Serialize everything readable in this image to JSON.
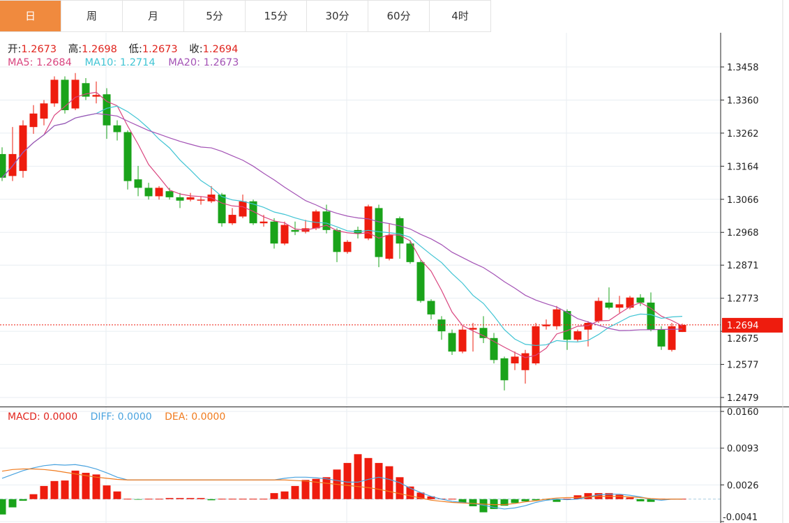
{
  "tabs": [
    {
      "label": "日",
      "active": true
    },
    {
      "label": "周"
    },
    {
      "label": "月"
    },
    {
      "label": "5分"
    },
    {
      "label": "15分"
    },
    {
      "label": "30分"
    },
    {
      "label": "60分"
    },
    {
      "label": "4时"
    }
  ],
  "ohlc_info": {
    "open_label": "开:",
    "open": "1.2673",
    "high_label": "高:",
    "high": "1.2698",
    "low_label": "低:",
    "low": "1.2673",
    "close_label": "收:",
    "close": "1.2694"
  },
  "ma_info": {
    "ma5": "MA5: 1.2684",
    "ma10": "MA10: 1.2714",
    "ma20": "MA20: 1.2673"
  },
  "macd_info": {
    "macd": "MACD: 0.0000",
    "diff": "DIFF: 0.0000",
    "dea": "DEA: 0.0000"
  },
  "colors": {
    "up": "#ee1c0e",
    "down": "#1aa31a",
    "ma5": "#d9457f",
    "ma10": "#40c4d4",
    "ma20": "#a352b5",
    "diff": "#4aa3df",
    "dea": "#f07b1e",
    "accent": "#f08a3e"
  },
  "chart_data": [
    {
      "type": "candlestick",
      "price_ticks": [
        "1.3458",
        "1.3360",
        "1.3262",
        "1.3164",
        "1.3066",
        "1.2968",
        "1.2871",
        "1.2773",
        "1.2675",
        "1.2577",
        "1.2479"
      ],
      "ylim": [
        1.2479,
        1.3458
      ],
      "current_price": "1.2694",
      "grid": true,
      "ohlc": [
        [
          1.32,
          1.322,
          1.312,
          1.313
        ],
        [
          1.3135,
          1.328,
          1.312,
          1.32
        ],
        [
          1.315,
          1.33,
          1.313,
          1.3285
        ],
        [
          1.328,
          1.3345,
          1.326,
          1.332
        ],
        [
          1.3305,
          1.336,
          1.3285,
          1.335
        ],
        [
          1.335,
          1.343,
          1.334,
          1.342
        ],
        [
          1.342,
          1.343,
          1.332,
          1.333
        ],
        [
          1.3335,
          1.344,
          1.333,
          1.342
        ],
        [
          1.341,
          1.3425,
          1.336,
          1.337
        ],
        [
          1.337,
          1.3415,
          1.335,
          1.3375
        ],
        [
          1.3377,
          1.3395,
          1.3245,
          1.3285
        ],
        [
          1.3285,
          1.33,
          1.324,
          1.3265
        ],
        [
          1.3265,
          1.327,
          1.3095,
          1.312
        ],
        [
          1.3125,
          1.3165,
          1.3075,
          1.31
        ],
        [
          1.31,
          1.3115,
          1.3065,
          1.3075
        ],
        [
          1.3075,
          1.3105,
          1.3065,
          1.31
        ],
        [
          1.309,
          1.31,
          1.3065,
          1.3072
        ],
        [
          1.3072,
          1.3085,
          1.304,
          1.3062
        ],
        [
          1.3065,
          1.3085,
          1.306,
          1.3072
        ],
        [
          1.3062,
          1.3075,
          1.305,
          1.3065
        ],
        [
          1.306,
          1.3105,
          1.3055,
          1.308
        ],
        [
          1.308,
          1.3085,
          1.2985,
          1.2995
        ],
        [
          1.2995,
          1.304,
          1.299,
          1.302
        ],
        [
          1.3015,
          1.308,
          1.301,
          1.306
        ],
        [
          1.306,
          1.3065,
          1.299,
          1.2995
        ],
        [
          1.2995,
          1.302,
          1.2985,
          1.3
        ],
        [
          1.3,
          1.301,
          1.292,
          1.2935
        ],
        [
          1.2935,
          1.3,
          1.293,
          1.299
        ],
        [
          1.2975,
          1.3,
          1.296,
          1.297
        ],
        [
          1.297,
          1.3005,
          1.2965,
          1.298
        ],
        [
          1.298,
          1.3035,
          1.2975,
          1.303
        ],
        [
          1.303,
          1.305,
          1.2965,
          1.2975
        ],
        [
          1.2975,
          1.298,
          1.288,
          1.291
        ],
        [
          1.291,
          1.2945,
          1.2905,
          1.294
        ],
        [
          1.2975,
          1.2985,
          1.295,
          1.2965
        ],
        [
          1.295,
          1.305,
          1.2945,
          1.3045
        ],
        [
          1.304,
          1.305,
          1.2865,
          1.2895
        ],
        [
          1.289,
          1.2995,
          1.2885,
          1.296
        ],
        [
          1.301,
          1.3015,
          1.289,
          1.2935
        ],
        [
          1.2935,
          1.2945,
          1.2875,
          1.288
        ],
        [
          1.288,
          1.2885,
          1.276,
          1.2765
        ],
        [
          1.2765,
          1.277,
          1.271,
          1.2725
        ],
        [
          1.271,
          1.272,
          1.265,
          1.2675
        ],
        [
          1.267,
          1.268,
          1.2605,
          1.2615
        ],
        [
          1.2615,
          1.269,
          1.261,
          1.268
        ],
        [
          1.268,
          1.27,
          1.2615,
          1.2685
        ],
        [
          1.2685,
          1.272,
          1.264,
          1.2655
        ],
        [
          1.2655,
          1.267,
          1.258,
          1.259
        ],
        [
          1.2595,
          1.26,
          1.25,
          1.253
        ],
        [
          1.258,
          1.2615,
          1.256,
          1.26
        ],
        [
          1.256,
          1.262,
          1.252,
          1.261
        ],
        [
          1.258,
          1.27,
          1.2575,
          1.269
        ],
        [
          1.269,
          1.271,
          1.268,
          1.2695
        ],
        [
          1.269,
          1.275,
          1.268,
          1.274
        ],
        [
          1.2735,
          1.274,
          1.262,
          1.265
        ],
        [
          1.265,
          1.268,
          1.2645,
          1.2675
        ],
        [
          1.268,
          1.2705,
          1.263,
          1.27
        ],
        [
          1.2705,
          1.2775,
          1.27,
          1.2765
        ],
        [
          1.276,
          1.2805,
          1.274,
          1.2745
        ],
        [
          1.2745,
          1.278,
          1.273,
          1.2755
        ],
        [
          1.2745,
          1.278,
          1.274,
          1.2775
        ],
        [
          1.2775,
          1.2785,
          1.275,
          1.276
        ],
        [
          1.276,
          1.279,
          1.2675,
          1.268
        ],
        [
          1.268,
          1.269,
          1.262,
          1.263
        ],
        [
          1.262,
          1.27,
          1.2615,
          1.269
        ],
        [
          1.2673,
          1.2698,
          1.2673,
          1.2694
        ]
      ]
    },
    {
      "type": "bar+line",
      "name": "MACD",
      "ticks": [
        "0.0160",
        "0.0093",
        "0.0026",
        "-0.0041"
      ],
      "ylim": [
        -0.0041,
        0.016
      ],
      "macd": [
        -0.0028,
        -0.0015,
        -0.0003,
        0.0009,
        0.0024,
        0.0033,
        0.0034,
        0.0052,
        0.0048,
        0.0045,
        0.0025,
        0.0014,
        0.0,
        -0.0001,
        0.0,
        0.0,
        0.0002,
        0.0002,
        0.0002,
        0.0002,
        -0.0002,
        0.0,
        0.0,
        0.0,
        0.0,
        0.0,
        0.0011,
        0.0014,
        0.0024,
        0.0035,
        0.0037,
        0.004,
        0.0054,
        0.0066,
        0.0082,
        0.0075,
        0.0066,
        0.006,
        0.004,
        0.0023,
        0.0012,
        0.0005,
        0.0001,
        0.0,
        -0.0007,
        -0.0013,
        -0.0024,
        -0.0018,
        -0.0012,
        -0.0007,
        -0.0004,
        -0.0002,
        -0.0001,
        -0.0005,
        0.0001,
        0.0007,
        0.0011,
        0.0011,
        0.0011,
        0.0008,
        0.0003,
        -0.0004,
        -0.0005,
        0.0001,
        0.0,
        0.0
      ],
      "diff": [
        0.0038,
        0.0045,
        0.0052,
        0.0057,
        0.0061,
        0.0063,
        0.0062,
        0.0063,
        0.006,
        0.0055,
        0.0048,
        0.004,
        0.0035,
        0.0035,
        0.0035,
        0.0035,
        0.0035,
        0.0035,
        0.0035,
        0.0035,
        0.0035,
        0.0035,
        0.0035,
        0.0035,
        0.0035,
        0.0035,
        0.0035,
        0.0038,
        0.004,
        0.004,
        0.0039,
        0.0037,
        0.0034,
        0.0031,
        0.0031,
        0.0036,
        0.004,
        0.0036,
        0.003,
        0.002,
        0.0012,
        0.0005,
        0.0,
        -0.0004,
        -0.0006,
        -0.0008,
        -0.0011,
        -0.0015,
        -0.0018,
        -0.0016,
        -0.0012,
        -0.0006,
        -0.0002,
        0.0,
        -0.0001,
        0.0,
        0.0004,
        0.0008,
        0.0009,
        0.0009,
        0.0007,
        0.0004,
        0.0,
        -0.0002,
        0.0,
        0.0
      ],
      "dea": [
        0.0051,
        0.0054,
        0.0055,
        0.0055,
        0.0054,
        0.0052,
        0.0049,
        0.0046,
        0.0043,
        0.004,
        0.0038,
        0.0036,
        0.0035,
        0.0035,
        0.0035,
        0.0035,
        0.0035,
        0.0035,
        0.0035,
        0.0035,
        0.0035,
        0.0035,
        0.0035,
        0.0035,
        0.0035,
        0.0035,
        0.0035,
        0.0035,
        0.0034,
        0.0033,
        0.0031,
        0.0029,
        0.0027,
        0.0025,
        0.0023,
        0.0021,
        0.0018,
        0.0014,
        0.001,
        0.0006,
        0.0002,
        -0.0002,
        -0.0004,
        -0.0006,
        -0.0007,
        -0.0008,
        -0.0009,
        -0.001,
        -0.001,
        -0.0008,
        -0.0005,
        -0.0003,
        0.0,
        0.0002,
        0.0003,
        0.0003,
        0.0004,
        0.0005,
        0.0005,
        0.0005,
        0.0004,
        0.0003,
        0.0001,
        0.0,
        0.0,
        0.0
      ]
    }
  ]
}
